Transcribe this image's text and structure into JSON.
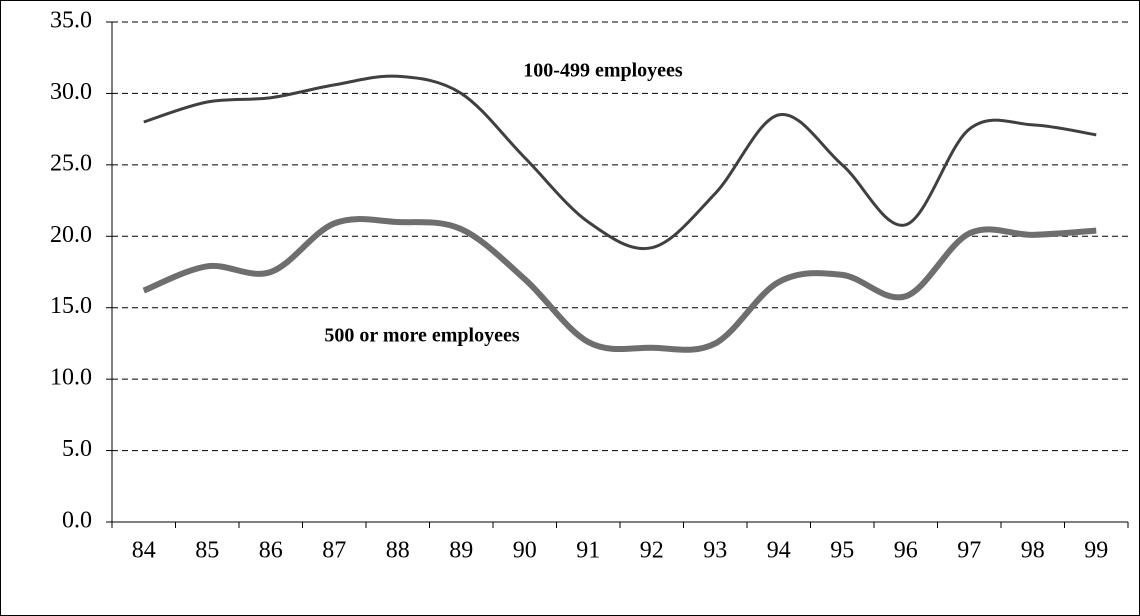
{
  "chart_data": {
    "type": "line",
    "categories": [
      "84",
      "85",
      "86",
      "87",
      "88",
      "89",
      "90",
      "91",
      "92",
      "93",
      "94",
      "95",
      "96",
      "97",
      "98",
      "99"
    ],
    "series": [
      {
        "name": "100-499 employees",
        "color": "#404040",
        "values": [
          28.0,
          29.4,
          29.7,
          30.6,
          31.2,
          30.0,
          25.5,
          21.0,
          19.2,
          23.0,
          28.5,
          25.0,
          20.8,
          27.5,
          27.8,
          27.1
        ]
      },
      {
        "name": "500 or more employees",
        "color": "#6e6e6e",
        "values": [
          16.2,
          17.9,
          17.5,
          20.9,
          21.0,
          20.5,
          17.0,
          12.6,
          12.2,
          12.5,
          16.8,
          17.3,
          15.8,
          20.2,
          20.1,
          20.4
        ]
      }
    ],
    "ylim": [
      0,
      35
    ],
    "yticks": [
      {
        "value": 0,
        "label": "0.0"
      },
      {
        "value": 5,
        "label": "5.0"
      },
      {
        "value": 10,
        "label": "10.0"
      },
      {
        "value": 15,
        "label": "15.0"
      },
      {
        "value": 20,
        "label": "20.0"
      },
      {
        "value": 25,
        "label": "25.0"
      },
      {
        "value": 30,
        "label": "30.0"
      },
      {
        "value": 35,
        "label": "35.0"
      }
    ],
    "grid": true,
    "smooth": true
  }
}
